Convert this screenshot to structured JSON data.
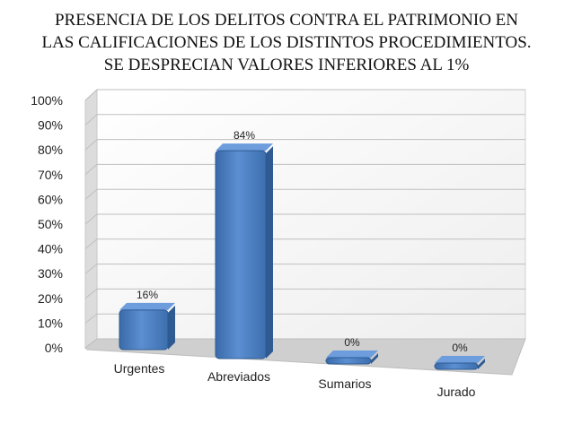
{
  "chart_data": {
    "type": "bar",
    "title_lines": [
      "PRESENCIA DE LOS DELITOS CONTRA EL PATRIMONIO EN",
      "LAS CALIFICACIONES DE LOS DISTINTOS PROCEDIMIENTOS.",
      "SE DESPRECIAN VALORES INFERIORES AL 1%"
    ],
    "categories": [
      "Urgentes",
      "Abreviados",
      "Sumarios",
      "Jurado"
    ],
    "values": [
      16,
      84,
      0,
      0
    ],
    "data_labels": [
      "16%",
      "84%",
      "0%",
      "0%"
    ],
    "ylim": [
      0,
      100
    ],
    "ytick_labels": [
      "0%",
      "10%",
      "20%",
      "30%",
      "40%",
      "50%",
      "60%",
      "70%",
      "80%",
      "90%",
      "100%"
    ],
    "grid": true,
    "style": "3d",
    "bar_color": "#4a7fc1"
  }
}
